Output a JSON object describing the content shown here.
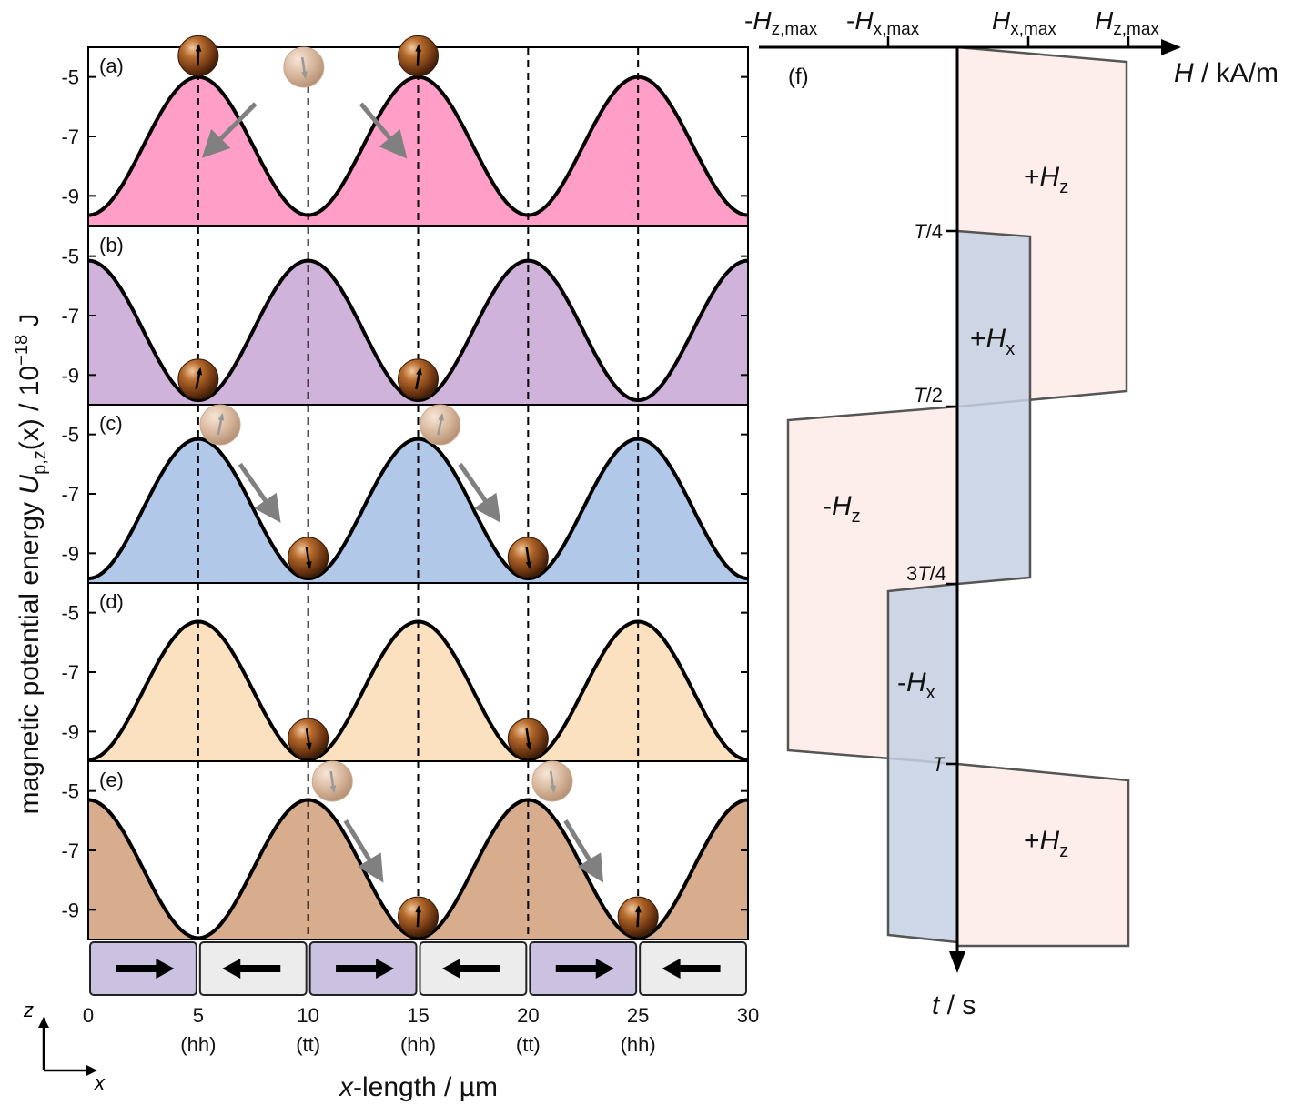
{
  "panels": [
    {
      "label": "(a)",
      "color": "#ff9ec6",
      "peaks": [
        5,
        15,
        25
      ],
      "top": -5.0,
      "bottom": -9.65
    },
    {
      "label": "(b)",
      "color": "#d0b3da",
      "peaks": [
        10,
        20,
        30
      ],
      "top": -5.15,
      "bottom": -9.85
    },
    {
      "label": "(c)",
      "color": "#b2c8e9",
      "peaks": [
        5,
        15,
        25
      ],
      "top": -5.15,
      "bottom": -9.85
    },
    {
      "label": "(d)",
      "color": "#fbe1c0",
      "peaks": [
        5,
        15,
        25
      ],
      "top": -5.3,
      "bottom": -9.95
    },
    {
      "label": "(e)",
      "color": "#d8ad8e",
      "peaks": [
        10,
        20,
        30
      ],
      "top": -5.3,
      "bottom": -9.95
    }
  ],
  "y_ticks": [
    "-5",
    "-7",
    "-9"
  ],
  "x_ticks": [
    "0",
    "5",
    "10",
    "15",
    "20",
    "25",
    "30"
  ],
  "wall_labels": [
    "(hh)",
    "(tt)",
    "(hh)",
    "(tt)",
    "(hh)"
  ],
  "ylabel_main": "magnetic potential energy ",
  "ylabel_U": "U",
  "ylabel_sub": "p,z",
  "ylabel_tail": "(x) / 10",
  "ylabel_exp": "−18",
  "ylabel_unit": " J",
  "xlabel_italic": "x",
  "xlabel_rest": "-length / µm",
  "axes_z": "z",
  "axes_x": "x",
  "domains": [
    "right",
    "left",
    "right",
    "left",
    "right",
    "left"
  ],
  "domain_colors": {
    "right": "#cbc2e2",
    "left": "#ececec"
  },
  "panel_f": {
    "label": "(f)",
    "h_axis_labels": [
      {
        "pre": "-",
        "main": "H",
        "sub": "z,max"
      },
      {
        "pre": "-",
        "main": "H",
        "sub": "x,max"
      },
      {
        "pre": "",
        "main": "H",
        "sub": "x,max"
      },
      {
        "pre": "",
        "main": "H",
        "sub": "z,max"
      }
    ],
    "h_axis_title_italic": "H",
    "h_axis_title_rest": " / kA/m",
    "t_axis_title_italic": "t",
    "t_axis_title_rest": " / s",
    "t_ticks": [
      {
        "pre": "",
        "it": "T",
        "post": "/4"
      },
      {
        "pre": "",
        "it": "T",
        "post": "/2"
      },
      {
        "pre": "3",
        "it": "T",
        "post": "/4"
      },
      {
        "pre": "",
        "it": "T",
        "post": ""
      }
    ],
    "regions": [
      {
        "pre": "+",
        "main": "H",
        "sub": "z"
      },
      {
        "pre": "+",
        "main": "H",
        "sub": "x"
      },
      {
        "pre": "-",
        "main": "H",
        "sub": "z"
      },
      {
        "pre": "-",
        "main": "H",
        "sub": "x"
      },
      {
        "pre": "+",
        "main": "H",
        "sub": "z"
      }
    ],
    "hz_color": "#fdeeec",
    "hx_color": "#c6d1e4"
  }
}
